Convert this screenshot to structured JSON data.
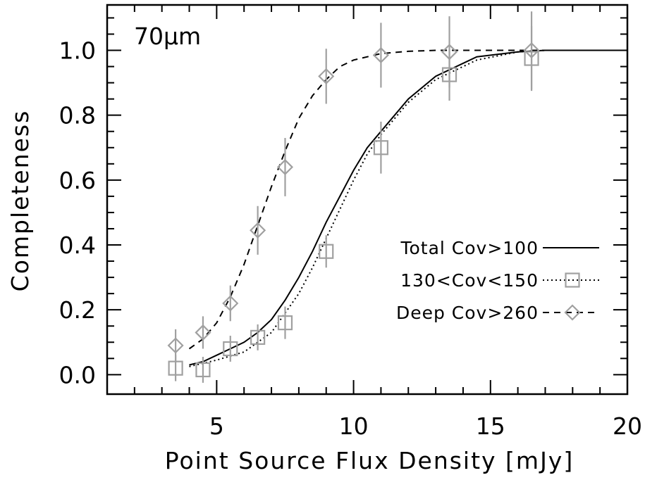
{
  "chart_data": {
    "type": "scatter",
    "annotation": "70μm",
    "xlabel": "Point Source Flux Density [mJy]",
    "ylabel": "Completeness",
    "xlim": [
      1,
      20
    ],
    "ylim": [
      -0.06,
      1.14
    ],
    "xticks": [
      5,
      10,
      15,
      20
    ],
    "yticks": [
      0.0,
      0.2,
      0.4,
      0.6,
      0.8,
      1.0
    ],
    "xtick_labels": [
      "5",
      "10",
      "15",
      "20"
    ],
    "ytick_labels": [
      "0.0",
      "0.2",
      "0.4",
      "0.6",
      "0.8",
      "1.0"
    ],
    "x_minor_step": 1,
    "y_minor_step": 0.05,
    "grid": false,
    "legend_position": "lower-right",
    "series": [
      {
        "name": "Total Cov>100",
        "kind": "line",
        "style": "solid",
        "color": "#000000",
        "x": [
          4.0,
          4.5,
          5.0,
          5.5,
          6.0,
          6.5,
          7.0,
          7.5,
          8.0,
          8.5,
          9.0,
          9.5,
          10.0,
          10.5,
          11.0,
          12.0,
          13.0,
          14.5,
          16.0,
          17.0,
          20.0
        ],
        "y": [
          0.03,
          0.04,
          0.06,
          0.08,
          0.1,
          0.13,
          0.17,
          0.23,
          0.3,
          0.38,
          0.47,
          0.55,
          0.63,
          0.7,
          0.75,
          0.85,
          0.92,
          0.98,
          0.995,
          1.0,
          1.0
        ]
      },
      {
        "name": "130<Cov<150",
        "kind": "line+markers",
        "style": "dotted",
        "marker": "square",
        "color": "#a0a0a0",
        "x": [
          3.5,
          4.5,
          5.5,
          6.5,
          7.5,
          9.0,
          11.0,
          13.5,
          16.5
        ],
        "y": [
          0.02,
          0.015,
          0.08,
          0.115,
          0.16,
          0.38,
          0.7,
          0.925,
          0.975
        ],
        "yerr": [
          0.04,
          0.04,
          0.04,
          0.04,
          0.05,
          0.05,
          0.08,
          0.08,
          0.1
        ],
        "fit_x": [
          4.0,
          5.0,
          6.0,
          7.0,
          8.0,
          8.5,
          9.0,
          9.5,
          10.0,
          10.5,
          11.0,
          12.0,
          13.0,
          14.5,
          16.0,
          17.0,
          20.0
        ],
        "fit_y": [
          0.025,
          0.045,
          0.07,
          0.13,
          0.25,
          0.33,
          0.42,
          0.51,
          0.6,
          0.68,
          0.74,
          0.84,
          0.91,
          0.97,
          0.995,
          1.0,
          1.0
        ]
      },
      {
        "name": "Deep Cov>260",
        "kind": "line+markers",
        "style": "dashed",
        "marker": "diamond",
        "color": "#a0a0a0",
        "x": [
          3.5,
          4.5,
          5.5,
          6.5,
          7.5,
          9.0,
          11.0,
          13.5,
          16.5
        ],
        "y": [
          0.09,
          0.13,
          0.22,
          0.445,
          0.64,
          0.92,
          0.985,
          0.995,
          1.0
        ],
        "yerr": [
          0.05,
          0.05,
          0.055,
          0.075,
          0.09,
          0.085,
          0.1,
          0.11,
          0.12
        ],
        "fit_x": [
          4.0,
          4.5,
          5.0,
          5.5,
          6.0,
          6.5,
          7.0,
          7.5,
          8.0,
          8.5,
          9.0,
          9.5,
          10.0,
          11.0,
          12.0,
          13.0,
          14.0,
          16.0,
          20.0
        ],
        "fit_y": [
          0.08,
          0.11,
          0.16,
          0.24,
          0.34,
          0.46,
          0.58,
          0.69,
          0.79,
          0.86,
          0.91,
          0.95,
          0.97,
          0.99,
          0.997,
          1.0,
          1.0,
          1.0,
          1.0
        ]
      }
    ],
    "colors": {
      "axis": "#000000",
      "marker": "#a0a0a0",
      "line": "#000000"
    }
  }
}
